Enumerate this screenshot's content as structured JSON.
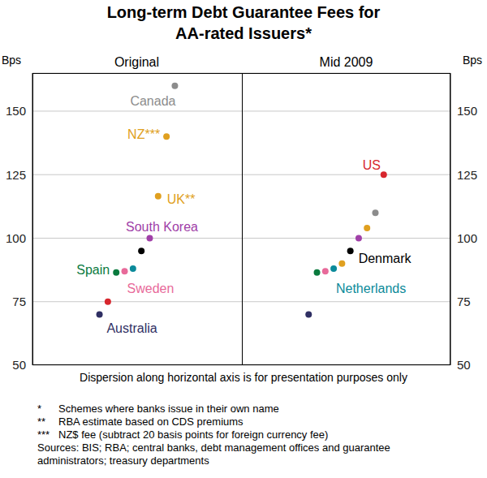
{
  "chart_data": {
    "type": "scatter",
    "title": "Long-term Debt Guarantee Fees for AA-rated Issuers*",
    "y_label": "Bps",
    "x_label": "Dispersion along horizontal axis is for presentation purposes only",
    "ylim": [
      50,
      165
    ],
    "yticks": [
      50,
      75,
      100,
      125,
      150
    ],
    "grid": true,
    "tick_labels": "y",
    "panels": [
      {
        "title": "Original",
        "points": [
          {
            "y": 70,
            "color": "#2f2f63",
            "label": "Australia"
          },
          {
            "y": 75,
            "color": "#d7262d"
          },
          {
            "y": 86.5,
            "color": "#0a7a3e",
            "label": "Spain"
          },
          {
            "y": 87,
            "color": "#e86a9a",
            "label": "Sweden"
          },
          {
            "y": 88,
            "color": "#0b8a9a"
          },
          {
            "y": 95,
            "color": "#000000"
          },
          {
            "y": 100,
            "color": "#a040a8",
            "label": "South Korea"
          },
          {
            "y": 116.5,
            "color": "#e0a020",
            "label": "UK**"
          },
          {
            "y": 140,
            "color": "#e0a020",
            "label": "NZ***"
          },
          {
            "y": 160,
            "color": "#8c8c8c",
            "label": "Canada"
          }
        ]
      },
      {
        "title": "Mid 2009",
        "points": [
          {
            "y": 70,
            "color": "#2f2f63"
          },
          {
            "y": 86.5,
            "color": "#0a7a3e"
          },
          {
            "y": 87,
            "color": "#e86a9a"
          },
          {
            "y": 88,
            "color": "#0b8a9a",
            "label": "Netherlands"
          },
          {
            "y": 90,
            "color": "#e0a020"
          },
          {
            "y": 95,
            "color": "#000000",
            "label": "Denmark"
          },
          {
            "y": 100,
            "color": "#a040a8"
          },
          {
            "y": 104,
            "color": "#e0a020"
          },
          {
            "y": 110,
            "color": "#8c8c8c"
          },
          {
            "y": 125,
            "color": "#d7262d",
            "label": "US"
          }
        ]
      }
    ],
    "notes": [
      {
        "mark": "*",
        "text": "Schemes where banks issue in their own name"
      },
      {
        "mark": "**",
        "text": "RBA estimate based on CDS premiums"
      },
      {
        "mark": "***",
        "text": "NZ$ fee (subtract 20 basis points for foreign currency fee)"
      }
    ],
    "sources": "Sources: BIS; RBA; central banks, debt management offices and guarantee administrators; treasury departments"
  }
}
